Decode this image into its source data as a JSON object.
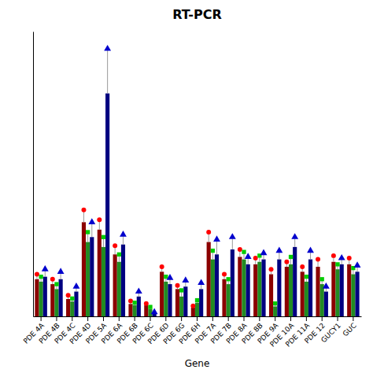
{
  "chart_data": {
    "type": "bar",
    "title": "RT-PCR",
    "xlabel": "Gene",
    "categories": [
      "PDE 4A",
      "PDE 4B",
      "PDE 4C",
      "PDE 4D",
      "PDE 5A",
      "PDE 6A",
      "PDE 6B",
      "PDE 6C",
      "PDE 6D",
      "PDE 6G",
      "PDE 6H",
      "PDE 7A",
      "PDE 7B",
      "PDE 8A",
      "PDE 8B",
      "PDE 9A",
      "PDE 10A",
      "PDE 11A",
      "PDE 12",
      "GUCY1",
      "GUC"
    ],
    "series": [
      {
        "type": "bar",
        "color": "#8B0000",
        "values": [
          1.5,
          1.3,
          0.7,
          3.8,
          3.5,
          2.5,
          0.5,
          0.45,
          1.8,
          1.1,
          0.35,
          3.0,
          1.5,
          2.4,
          2.1,
          1.7,
          2.0,
          1.8,
          2.0,
          2.2,
          2.1
        ]
      },
      {
        "type": "bar",
        "color": "#228B22",
        "values": [
          1.4,
          1.1,
          0.6,
          3.0,
          2.8,
          2.2,
          0.45,
          0.3,
          1.4,
          0.8,
          0.55,
          2.3,
          1.3,
          2.3,
          2.2,
          0.4,
          2.1,
          1.4,
          1.3,
          1.9,
          1.7
        ]
      },
      {
        "type": "bar",
        "color": "#000080",
        "values": [
          1.6,
          1.5,
          1.0,
          3.2,
          9.0,
          2.9,
          0.8,
          0.12,
          1.3,
          1.2,
          1.1,
          2.5,
          2.7,
          2.1,
          2.3,
          2.3,
          2.8,
          2.3,
          1.0,
          2.1,
          1.8
        ]
      },
      {
        "type": "scatter",
        "color": "#FF0000",
        "marker": "circle",
        "values": [
          1.7,
          1.5,
          0.85,
          4.3,
          3.9,
          2.85,
          0.62,
          0.52,
          2.0,
          1.25,
          0.42,
          3.4,
          1.7,
          2.7,
          2.35,
          1.9,
          2.2,
          2.0,
          2.3,
          2.45,
          2.35
        ]
      },
      {
        "type": "scatter",
        "color": "#00CC00",
        "marker": "square",
        "values": [
          1.6,
          1.3,
          0.72,
          3.4,
          3.2,
          2.5,
          0.55,
          0.38,
          1.6,
          1.05,
          0.65,
          2.65,
          1.5,
          2.6,
          2.45,
          0.52,
          2.4,
          1.6,
          1.5,
          2.1,
          1.95
        ]
      },
      {
        "type": "scatter",
        "color": "#0000CD",
        "marker": "triangle",
        "values": [
          1.9,
          1.8,
          1.2,
          3.8,
          10.8,
          3.3,
          1.0,
          0.17,
          1.55,
          1.45,
          1.35,
          3.1,
          3.2,
          2.4,
          2.55,
          2.65,
          3.2,
          2.65,
          1.2,
          2.35,
          2.05
        ]
      }
    ],
    "ylim": [
      0,
      11.5
    ],
    "grid": false,
    "tick_labels": "x"
  }
}
